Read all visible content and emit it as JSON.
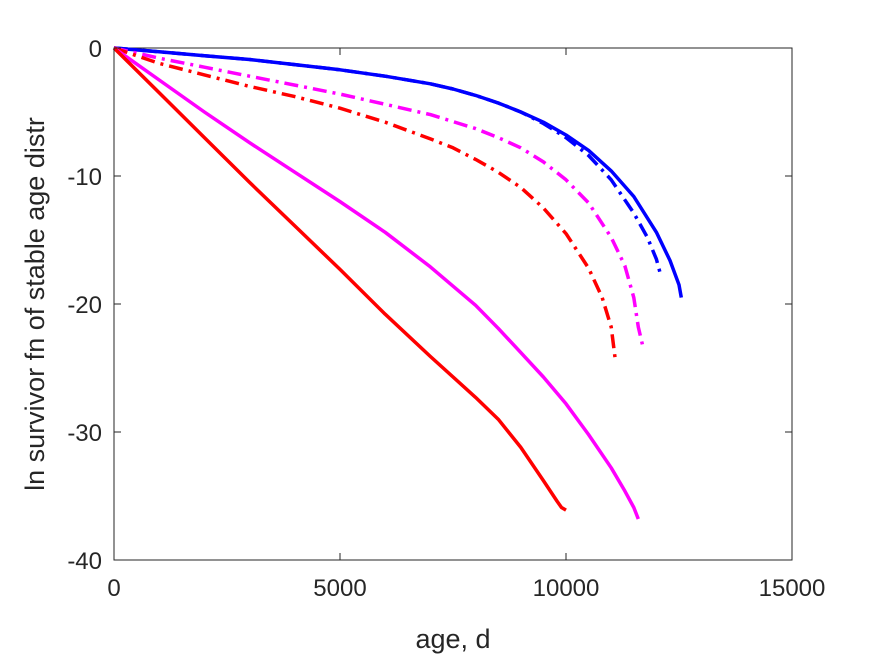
{
  "chart_data": {
    "type": "line",
    "xlabel": "age, d",
    "ylabel": "ln survivor fn of stable age distr",
    "xlim": [
      0,
      15000
    ],
    "ylim": [
      -40,
      0
    ],
    "xticks": [
      0,
      5000,
      10000,
      15000
    ],
    "xtick_labels": [
      "0",
      "5000",
      "10000",
      "15000"
    ],
    "yticks": [
      0,
      -10,
      -20,
      -30,
      -40
    ],
    "ytick_labels": [
      "0",
      "-10",
      "-20",
      "-30",
      "-40"
    ],
    "grid": false,
    "legend": "none",
    "series": [
      {
        "color": "#0000ff",
        "style": "solid",
        "x": [
          0,
          1000,
          2000,
          3000,
          4000,
          5000,
          6000,
          7000,
          7500,
          8000,
          8500,
          9000,
          9500,
          10000,
          10500,
          11000,
          11500,
          12000,
          12300,
          12500,
          12550
        ],
        "y": [
          0,
          -0.3,
          -0.6,
          -0.9,
          -1.3,
          -1.7,
          -2.2,
          -2.8,
          -3.2,
          -3.7,
          -4.3,
          -5.0,
          -5.8,
          -6.8,
          -8.0,
          -9.6,
          -11.6,
          -14.4,
          -16.6,
          -18.5,
          -19.5
        ]
      },
      {
        "color": "#0000ff",
        "style": "dashdot",
        "x": [
          0,
          1000,
          2000,
          3000,
          4000,
          5000,
          6000,
          7000,
          7500,
          8000,
          8500,
          9000,
          9500,
          10000,
          10500,
          11000,
          11500,
          11800,
          12000,
          12100
        ],
        "y": [
          0,
          -0.3,
          -0.6,
          -0.9,
          -1.3,
          -1.7,
          -2.2,
          -2.8,
          -3.2,
          -3.7,
          -4.3,
          -5.0,
          -5.9,
          -7.0,
          -8.4,
          -10.3,
          -12.9,
          -14.8,
          -16.5,
          -17.8
        ]
      },
      {
        "color": "#ff00ff",
        "style": "dashdot",
        "x": [
          0,
          500,
          1000,
          2000,
          3000,
          4000,
          5000,
          6000,
          7000,
          8000,
          8500,
          9000,
          9500,
          10000,
          10500,
          11000,
          11300,
          11500,
          11600,
          11700
        ],
        "y": [
          0,
          -0.4,
          -0.8,
          -1.5,
          -2.2,
          -2.9,
          -3.6,
          -4.4,
          -5.2,
          -6.3,
          -7.0,
          -7.8,
          -8.9,
          -10.3,
          -12.1,
          -14.8,
          -17.0,
          -19.5,
          -21.8,
          -23.3
        ]
      },
      {
        "color": "#ff0000",
        "style": "dashdot",
        "x": [
          0,
          500,
          1000,
          2000,
          3000,
          4000,
          5000,
          6000,
          7000,
          7500,
          8000,
          8500,
          9000,
          9500,
          10000,
          10500,
          10800,
          11000,
          11100
        ],
        "y": [
          0,
          -0.6,
          -1.2,
          -2.1,
          -3.0,
          -3.8,
          -4.7,
          -5.8,
          -7.1,
          -7.8,
          -8.7,
          -9.7,
          -10.9,
          -12.5,
          -14.5,
          -17.2,
          -19.5,
          -21.8,
          -24.6
        ]
      },
      {
        "color": "#ff00ff",
        "style": "solid",
        "x": [
          0,
          1000,
          2000,
          3000,
          4000,
          5000,
          6000,
          7000,
          8000,
          8500,
          9000,
          9500,
          10000,
          10500,
          11000,
          11300,
          11500,
          11600
        ],
        "y": [
          0,
          -2.5,
          -5.0,
          -7.4,
          -9.7,
          -12.0,
          -14.4,
          -17.1,
          -20.1,
          -21.9,
          -23.8,
          -25.7,
          -27.8,
          -30.2,
          -32.8,
          -34.6,
          -35.9,
          -36.8
        ]
      },
      {
        "color": "#ff0000",
        "style": "solid",
        "x": [
          0,
          1000,
          2000,
          3000,
          4000,
          5000,
          6000,
          7000,
          8000,
          8500,
          9000,
          9500,
          9800,
          9900,
          10000
        ],
        "y": [
          0,
          -3.5,
          -7.0,
          -10.5,
          -13.9,
          -17.3,
          -20.8,
          -24.1,
          -27.3,
          -29.0,
          -31.2,
          -33.8,
          -35.4,
          -35.9,
          -36.1
        ]
      }
    ]
  }
}
